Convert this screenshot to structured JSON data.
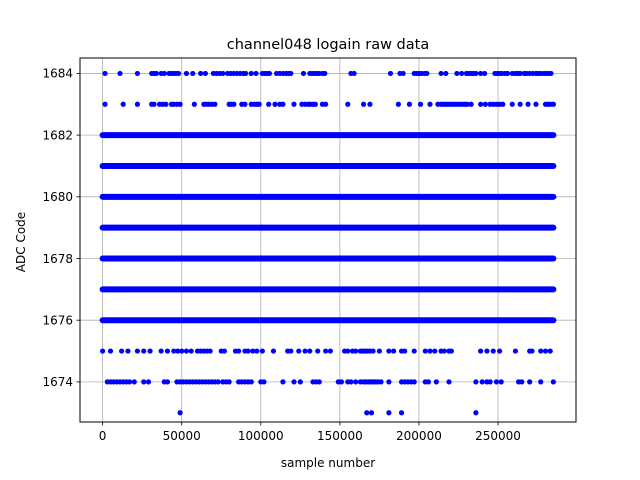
{
  "chart_data": {
    "type": "scatter",
    "title": "channel048 logain raw data",
    "xlabel": "sample number",
    "ylabel": "ADC Code",
    "xlim": [
      -14300,
      299300
    ],
    "ylim": [
      1672.7,
      1684.5
    ],
    "x_ticks": [
      0,
      50000,
      100000,
      150000,
      200000,
      250000
    ],
    "y_ticks": [
      1674,
      1676,
      1678,
      1680,
      1682,
      1684
    ],
    "grid": true,
    "marker_color": "#0000ff",
    "series": [
      {
        "level": 1684,
        "dense": false,
        "x": [
          1500,
          11000,
          22000,
          31000,
          32500,
          34000,
          37000,
          39000,
          42000,
          43500,
          45000,
          46500,
          48000,
          53000,
          57000,
          62000,
          65000,
          70000,
          72000,
          74000,
          76000,
          79000,
          81000,
          83000,
          85000,
          87000,
          89000,
          90500,
          94000,
          97000,
          101000,
          102500,
          104000,
          105500,
          110000,
          112000,
          114000,
          116000,
          117500,
          119000,
          127000,
          131000,
          132500,
          134000,
          135500,
          137000,
          139000,
          140500,
          157000,
          159000,
          182000,
          188000,
          190000,
          197000,
          198500,
          200000,
          201500,
          203500,
          205000,
          214000,
          217000,
          224000,
          227000,
          230000,
          231500,
          233000,
          234500,
          236000,
          239000,
          241500,
          248000,
          249500,
          251000,
          252500,
          254500,
          256000,
          259000,
          261000,
          262500,
          264000,
          266500,
          268000,
          270000,
          272000,
          274000,
          275500,
          277000,
          279000,
          280500,
          282000,
          283500
        ]
      },
      {
        "level": 1683,
        "dense": false,
        "x": [
          1500,
          13000,
          22000,
          31000,
          32500,
          36000,
          38000,
          40000,
          43500,
          45000,
          47000,
          49000,
          58000,
          64000,
          65500,
          67000,
          69000,
          71000,
          80000,
          81500,
          83000,
          88000,
          90000,
          94000,
          96000,
          97500,
          99000,
          105000,
          109000,
          112000,
          114000,
          121000,
          126000,
          128000,
          130000,
          131500,
          133000,
          134500,
          139000,
          141000,
          155000,
          165000,
          169000,
          187000,
          194000,
          201000,
          207000,
          212000,
          214000,
          215500,
          217000,
          218500,
          220000,
          221500,
          223000,
          224500,
          226000,
          227500,
          229000,
          230500,
          233000,
          239000,
          242000,
          245000,
          247000,
          249000,
          251000,
          253000,
          259000,
          264000,
          269000,
          274000,
          280000,
          281500,
          283000,
          285000
        ]
      },
      {
        "level": 1682,
        "dense": true
      },
      {
        "level": 1681,
        "dense": true
      },
      {
        "level": 1680,
        "dense": true
      },
      {
        "level": 1679,
        "dense": true
      },
      {
        "level": 1678,
        "dense": true
      },
      {
        "level": 1677,
        "dense": true
      },
      {
        "level": 1676,
        "dense": true
      },
      {
        "level": 1675,
        "dense": false,
        "x": [
          0,
          5000,
          12000,
          16000,
          22000,
          26000,
          30000,
          37000,
          41000,
          45000,
          47500,
          50000,
          53000,
          56000,
          60000,
          62000,
          64000,
          66000,
          68000,
          75000,
          77000,
          84000,
          86000,
          90000,
          92000,
          95000,
          97500,
          101000,
          108000,
          117000,
          119000,
          124000,
          128000,
          131000,
          136000,
          141000,
          144000,
          153000,
          155000,
          158000,
          160000,
          163000,
          164500,
          166000,
          167500,
          169000,
          171000,
          175000,
          181000,
          184000,
          189000,
          191000,
          197000,
          204000,
          207000,
          210000,
          214000,
          216000,
          219000,
          220500,
          239000,
          243000,
          247000,
          251000,
          261000,
          270000,
          271500,
          277000,
          280000,
          283000
        ]
      },
      {
        "level": 1674,
        "dense": false,
        "x": [
          3000,
          5000,
          7000,
          9000,
          11000,
          13000,
          15000,
          17000,
          20000,
          26000,
          29000,
          39000,
          41000,
          47000,
          49000,
          51000,
          53000,
          55000,
          57000,
          59000,
          61000,
          63000,
          65000,
          67000,
          69000,
          71000,
          73000,
          76000,
          78000,
          80000,
          86000,
          88000,
          90000,
          92000,
          94000,
          100000,
          102000,
          114000,
          121000,
          125000,
          133000,
          135000,
          137000,
          149000,
          151000,
          155000,
          157000,
          160000,
          163000,
          165000,
          166500,
          168000,
          169500,
          171000,
          172500,
          174000,
          176000,
          181000,
          189000,
          191000,
          193000,
          195000,
          197000,
          204000,
          206000,
          211000,
          219000,
          236000,
          240000,
          243000,
          245000,
          249000,
          252000,
          263000,
          265000,
          270000,
          277000,
          285000
        ]
      },
      {
        "level": 1673,
        "dense": false,
        "x": [
          49000,
          167000,
          170000,
          181000,
          189000,
          236000
        ]
      }
    ],
    "x_dense_range": [
      0,
      285000
    ]
  }
}
